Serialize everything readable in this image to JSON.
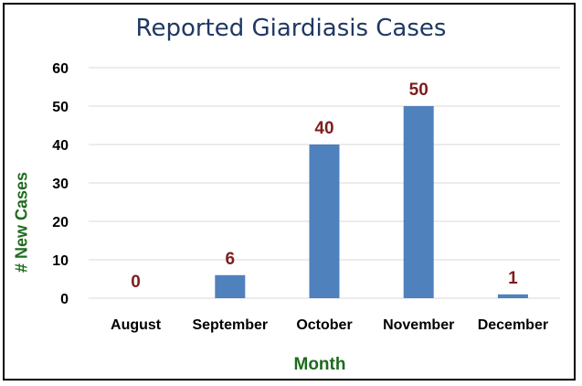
{
  "chart_data": {
    "type": "bar",
    "title": "Reported Giardiasis Cases",
    "xlabel": "Month",
    "ylabel": "# New Cases",
    "categories": [
      "August",
      "September",
      "October",
      "November",
      "December"
    ],
    "values": [
      0,
      6,
      40,
      50,
      1
    ],
    "ylim": [
      0,
      60
    ],
    "yticks": [
      0,
      10,
      20,
      30,
      40,
      50,
      60
    ],
    "grid": true,
    "legend": "none",
    "colors": {
      "bar": "#4f81bd",
      "data_label": "#7f1d1d",
      "title": "#1f3864",
      "axis_title": "#1e6b1e",
      "gridline": "#d9d9d9"
    }
  }
}
